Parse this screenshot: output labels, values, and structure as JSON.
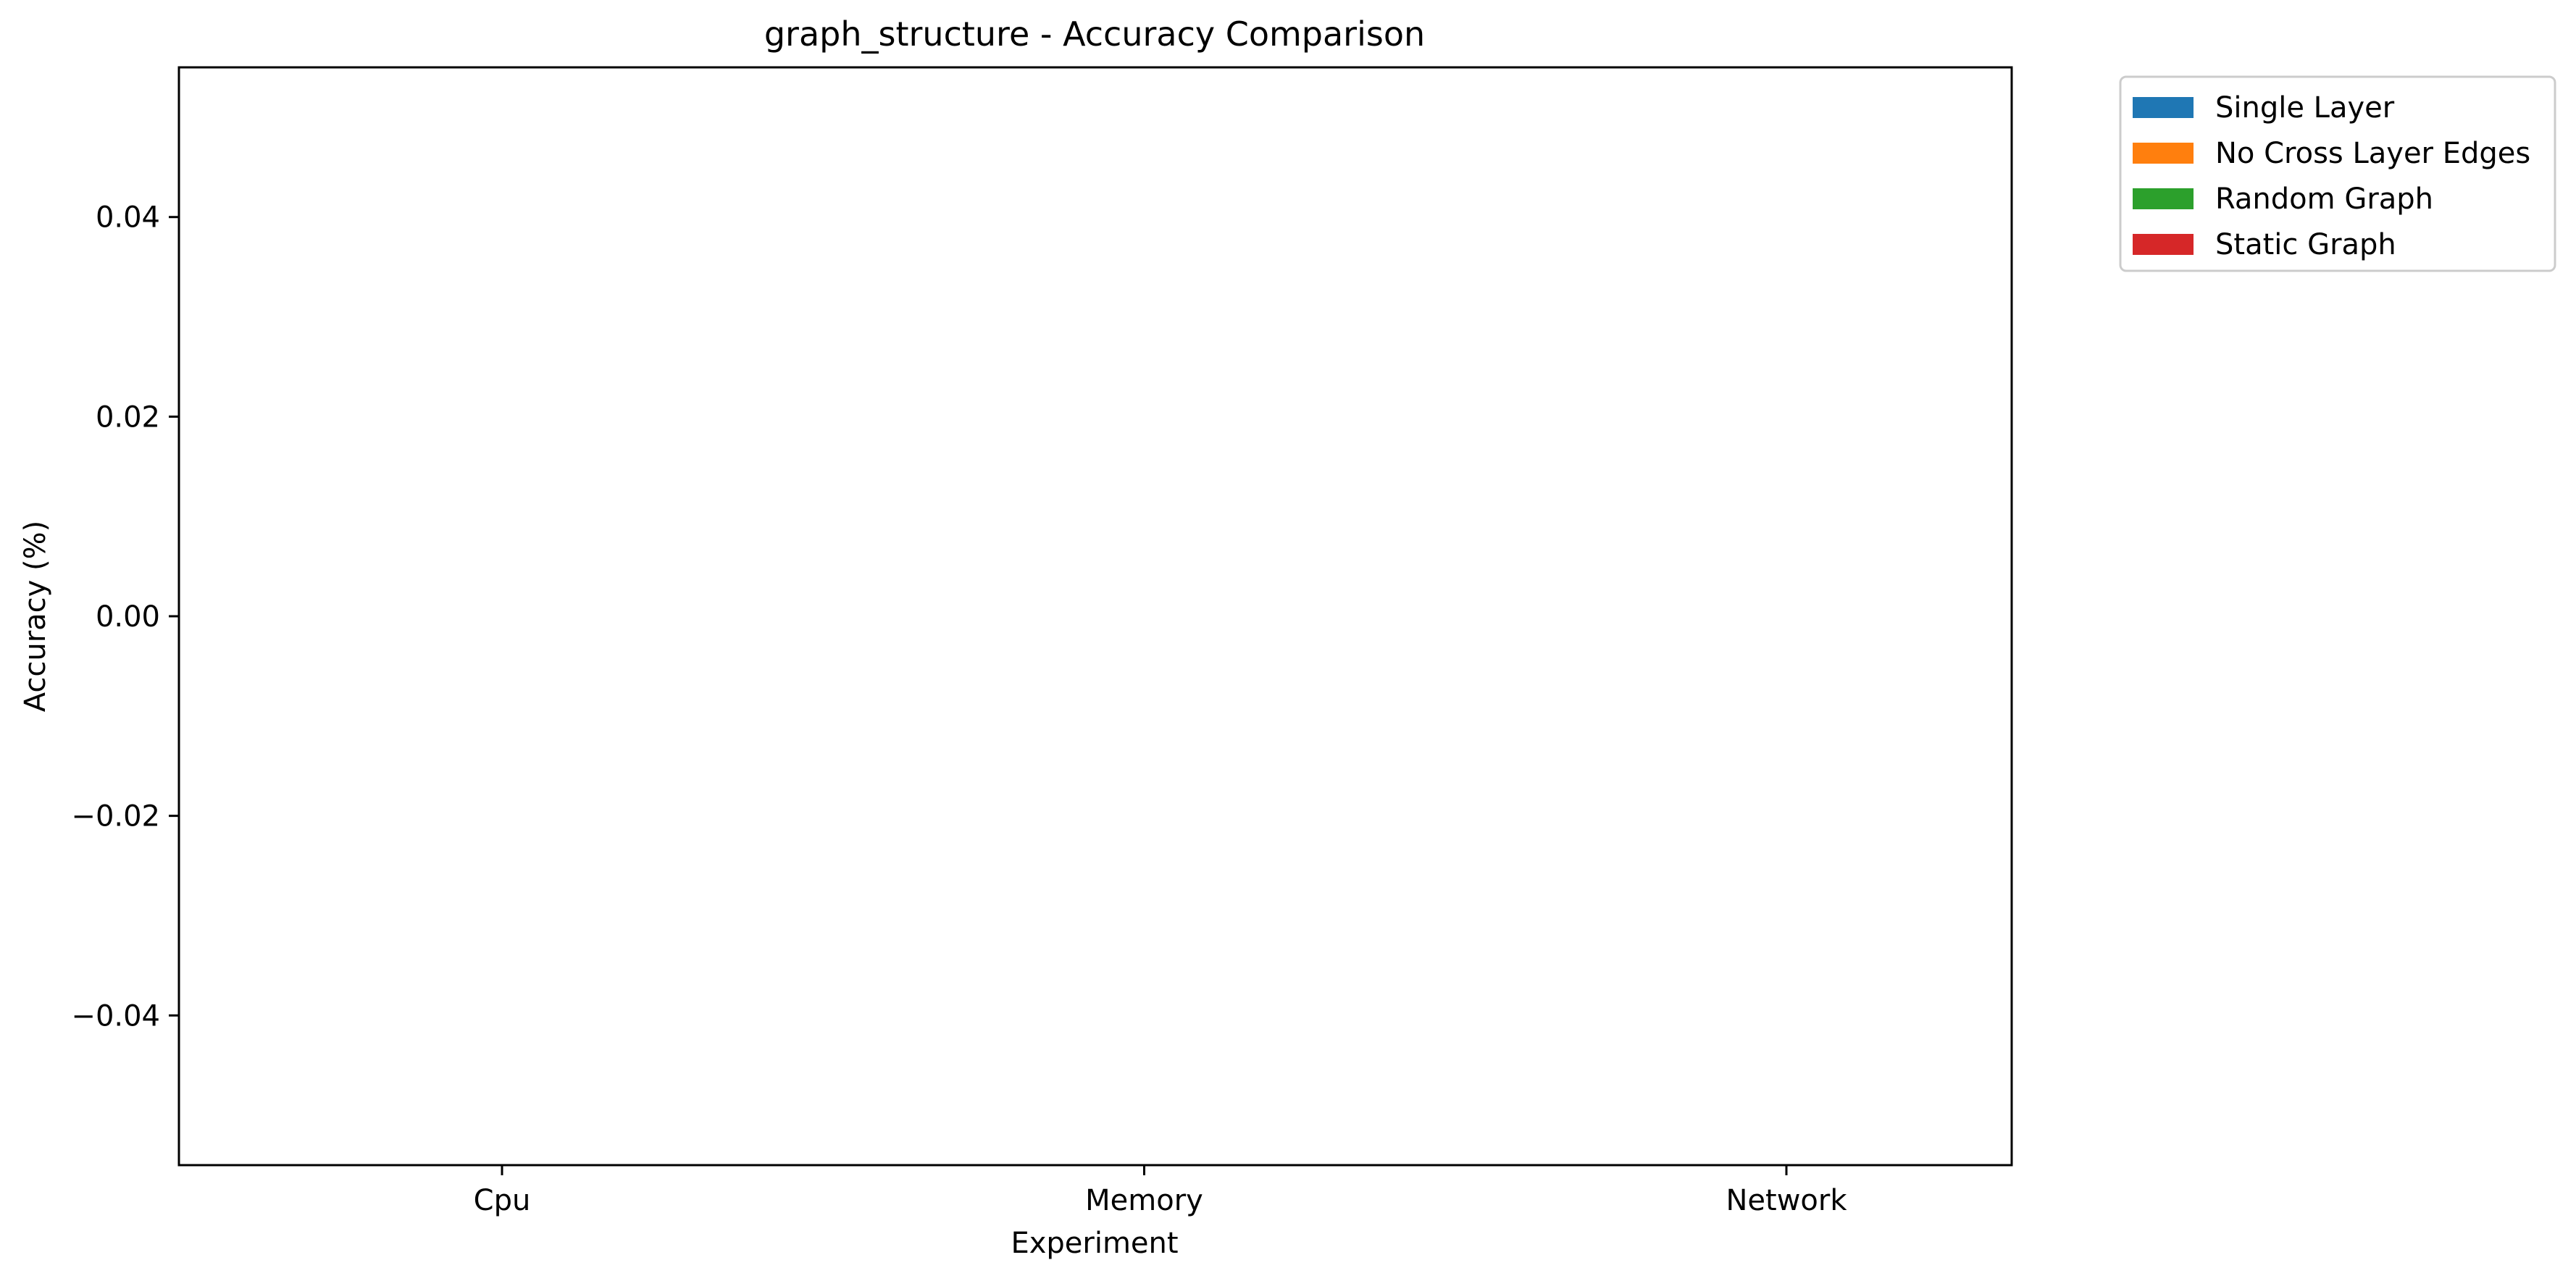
{
  "chart_data": {
    "type": "bar",
    "title": "graph_structure - Accuracy Comparison",
    "xlabel": "Experiment",
    "ylabel": "Accuracy (%)",
    "categories": [
      "Cpu",
      "Memory",
      "Network"
    ],
    "series": [
      {
        "name": "Single Layer",
        "color": "#1f77b4",
        "values": [
          0,
          0,
          0
        ]
      },
      {
        "name": "No Cross Layer Edges",
        "color": "#ff7f0e",
        "values": [
          0,
          0,
          0
        ]
      },
      {
        "name": "Random Graph",
        "color": "#2ca02c",
        "values": [
          0,
          0,
          0
        ]
      },
      {
        "name": "Static Graph",
        "color": "#d62728",
        "values": [
          0,
          0,
          0
        ]
      }
    ],
    "ylim": [
      -0.055,
      0.055
    ],
    "yticks": [
      -0.04,
      -0.02,
      0.0,
      0.02,
      0.04
    ],
    "ytick_labels": [
      "−0.04",
      "−0.02",
      "0.00",
      "0.02",
      "0.04"
    ],
    "grid": false,
    "legend_position": "outside-top-right"
  }
}
